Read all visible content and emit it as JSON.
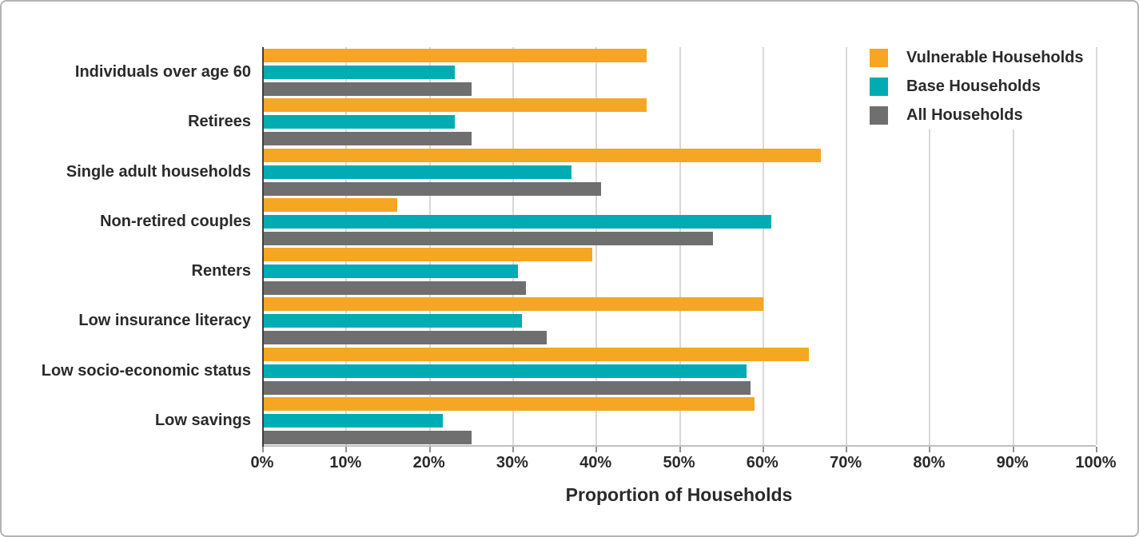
{
  "figure": {
    "background": "#ffffff",
    "border_color": "#b3b3b3"
  },
  "axis": {
    "title": "Proportion of Households"
  },
  "chart_data": {
    "type": "bar",
    "orientation": "horizontal",
    "title": "",
    "xlabel": "Proportion of Households",
    "ylabel": "",
    "xlim": [
      0,
      100
    ],
    "grid": "vertical",
    "legend_position": "top-right",
    "x_ticks": [
      "0%",
      "10%",
      "20%",
      "30%",
      "40%",
      "50%",
      "60%",
      "70%",
      "80%",
      "90%",
      "100%"
    ],
    "categories": [
      "Individuals over age 60",
      "Retirees",
      "Single adult households",
      "Non-retired couples",
      "Renters",
      "Low insurance literacy",
      "Low socio-economic status",
      "Low savings"
    ],
    "series": [
      {
        "name": "Vulnerable Households",
        "color": "#F5A623",
        "values": [
          46,
          46,
          67,
          16,
          39.5,
          60,
          65.5,
          59
        ]
      },
      {
        "name": "Base Households",
        "color": "#00ACB4",
        "values": [
          23,
          23,
          37,
          61,
          30.5,
          31,
          58,
          21.5
        ]
      },
      {
        "name": "All Households",
        "color": "#6F6F6F",
        "values": [
          25,
          25,
          40.5,
          54,
          31.5,
          34,
          58.5,
          25
        ]
      }
    ],
    "colors": {
      "gridline": "#d8d8d8",
      "baseline": "#c0c0c0",
      "y_axis_line": "#3d3d3d",
      "text": "#2a2a2a"
    }
  }
}
